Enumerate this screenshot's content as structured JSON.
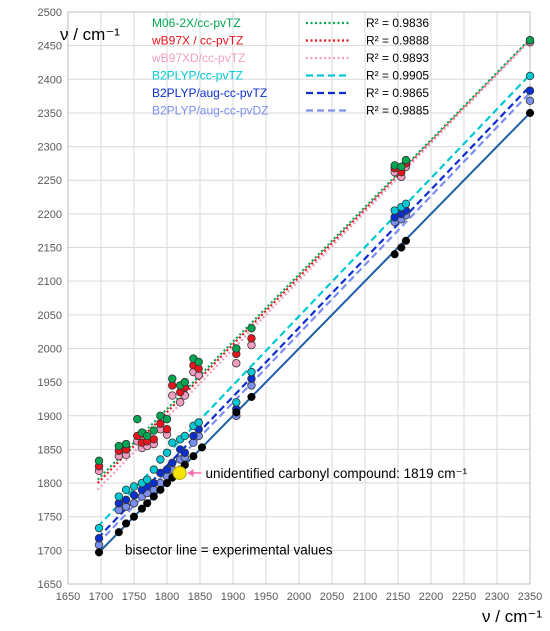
{
  "chart_data": {
    "type": "scatter",
    "xlabel": "ν / cm⁻¹",
    "ylabel": "ν / cm⁻¹",
    "xlim": [
      1650,
      2350
    ],
    "ylim": [
      1650,
      2500
    ],
    "x_ticks": [
      "1650",
      "1700",
      "1750",
      "1800",
      "1850",
      "1900",
      "1950",
      "2000",
      "2050",
      "2100",
      "2150",
      "2200",
      "2250",
      "2300",
      "2350"
    ],
    "y_ticks": [
      "1650",
      "1700",
      "1750",
      "1800",
      "1850",
      "1900",
      "1950",
      "2000",
      "2050",
      "2100",
      "2150",
      "2200",
      "2250",
      "2300",
      "2350",
      "2400",
      "2450",
      "2500"
    ],
    "grid": true,
    "legend_position": "top-left",
    "series": [
      {
        "name": "M06-2X/cc-pvTZ",
        "r2": "R² = 0.9836",
        "color": "#00a651",
        "line_style": "dotted",
        "fit": [
          [
            1695,
            1805
          ],
          [
            2350,
            2460
          ]
        ],
        "points": [
          [
            1697,
            1833
          ],
          [
            1727,
            1855
          ],
          [
            1738,
            1858
          ],
          [
            1755,
            1895
          ],
          [
            1762,
            1875
          ],
          [
            1770,
            1870
          ],
          [
            1780,
            1878
          ],
          [
            1790,
            1900
          ],
          [
            1800,
            1895
          ],
          [
            1808,
            1955
          ],
          [
            1820,
            1945
          ],
          [
            1827,
            1950
          ],
          [
            1840,
            1985
          ],
          [
            1848,
            1980
          ],
          [
            1905,
            2000
          ],
          [
            1928,
            2030
          ],
          [
            2145,
            2272
          ],
          [
            2155,
            2270
          ],
          [
            2162,
            2280
          ],
          [
            2350,
            2458
          ]
        ]
      },
      {
        "name": "wB97X / cc-pvTZ",
        "r2": "R² = 0.9888",
        "color": "#e8141c",
        "line_style": "dotted",
        "fit": [
          [
            1695,
            1800
          ],
          [
            2350,
            2458
          ]
        ],
        "points": [
          [
            1697,
            1825
          ],
          [
            1727,
            1848
          ],
          [
            1738,
            1850
          ],
          [
            1755,
            1870
          ],
          [
            1762,
            1860
          ],
          [
            1770,
            1862
          ],
          [
            1780,
            1865
          ],
          [
            1790,
            1888
          ],
          [
            1800,
            1880
          ],
          [
            1808,
            1945
          ],
          [
            1820,
            1935
          ],
          [
            1827,
            1942
          ],
          [
            1840,
            1975
          ],
          [
            1848,
            1970
          ],
          [
            1905,
            1992
          ],
          [
            1928,
            2015
          ],
          [
            2145,
            2268
          ],
          [
            2155,
            2262
          ],
          [
            2162,
            2275
          ],
          [
            2350,
            2458
          ]
        ]
      },
      {
        "name": "wB97XD/cc-pvTZ",
        "r2": "R² = 0.9893",
        "color": "#f19ec2",
        "line_style": "dotted",
        "fit": [
          [
            1695,
            1790
          ],
          [
            2350,
            2458
          ]
        ],
        "points": [
          [
            1697,
            1818
          ],
          [
            1727,
            1840
          ],
          [
            1738,
            1842
          ],
          [
            1755,
            1862
          ],
          [
            1762,
            1852
          ],
          [
            1770,
            1855
          ],
          [
            1780,
            1858
          ],
          [
            1790,
            1880
          ],
          [
            1800,
            1872
          ],
          [
            1808,
            1930
          ],
          [
            1820,
            1920
          ],
          [
            1827,
            1930
          ],
          [
            1840,
            1965
          ],
          [
            1848,
            1960
          ],
          [
            1905,
            1978
          ],
          [
            1928,
            2005
          ],
          [
            2145,
            2262
          ],
          [
            2155,
            2255
          ],
          [
            2162,
            2270
          ],
          [
            2350,
            2455
          ]
        ]
      },
      {
        "name": "B2PLYP/cc-pvTZ",
        "r2": "R² = 0.9905",
        "color": "#00c8d4",
        "line_style": "dashed",
        "fit": [
          [
            1695,
            1735
          ],
          [
            2350,
            2407
          ]
        ],
        "points": [
          [
            1697,
            1733
          ],
          [
            1727,
            1780
          ],
          [
            1738,
            1790
          ],
          [
            1750,
            1795
          ],
          [
            1762,
            1800
          ],
          [
            1770,
            1805
          ],
          [
            1780,
            1820
          ],
          [
            1790,
            1835
          ],
          [
            1800,
            1845
          ],
          [
            1808,
            1860
          ],
          [
            1820,
            1865
          ],
          [
            1827,
            1870
          ],
          [
            1840,
            1885
          ],
          [
            1848,
            1890
          ],
          [
            1905,
            1920
          ],
          [
            1928,
            1965
          ],
          [
            2145,
            2205
          ],
          [
            2155,
            2210
          ],
          [
            2162,
            2215
          ],
          [
            2350,
            2405
          ]
        ]
      },
      {
        "name": "B2PLYP/aug-cc-pvTZ",
        "r2": "R² = 0.9865",
        "color": "#0b2fcf",
        "line_style": "dashed",
        "fit": [
          [
            1695,
            1718
          ],
          [
            2350,
            2390
          ]
        ],
        "points": [
          [
            1697,
            1718
          ],
          [
            1727,
            1770
          ],
          [
            1738,
            1775
          ],
          [
            1750,
            1782
          ],
          [
            1762,
            1790
          ],
          [
            1770,
            1795
          ],
          [
            1780,
            1800
          ],
          [
            1790,
            1815
          ],
          [
            1800,
            1820
          ],
          [
            1808,
            1830
          ],
          [
            1820,
            1850
          ],
          [
            1827,
            1845
          ],
          [
            1840,
            1870
          ],
          [
            1848,
            1880
          ],
          [
            1905,
            1910
          ],
          [
            1928,
            1955
          ],
          [
            2145,
            2195
          ],
          [
            2155,
            2200
          ],
          [
            2162,
            2205
          ],
          [
            2350,
            2383
          ]
        ]
      },
      {
        "name": "B2PLYP/aug-cc-pvDZ",
        "r2": "R² = 0.9885",
        "color": "#7a8ff0",
        "line_style": "dashed",
        "fit": [
          [
            1695,
            1710
          ],
          [
            2350,
            2380
          ]
        ],
        "points": [
          [
            1697,
            1708
          ],
          [
            1727,
            1760
          ],
          [
            1738,
            1765
          ],
          [
            1750,
            1770
          ],
          [
            1762,
            1780
          ],
          [
            1770,
            1785
          ],
          [
            1780,
            1790
          ],
          [
            1790,
            1800
          ],
          [
            1800,
            1810
          ],
          [
            1808,
            1820
          ],
          [
            1820,
            1835
          ],
          [
            1827,
            1838
          ],
          [
            1840,
            1860
          ],
          [
            1848,
            1870
          ],
          [
            1905,
            1900
          ],
          [
            1928,
            1945
          ],
          [
            2145,
            2188
          ],
          [
            2155,
            2192
          ],
          [
            2162,
            2198
          ],
          [
            2350,
            2368
          ]
        ]
      }
    ],
    "bisector": {
      "label": "bisector line = experimental values",
      "color": "#1f5fa8",
      "points": [
        [
          1697,
          1697
        ],
        [
          1727,
          1727
        ],
        [
          1738,
          1740
        ],
        [
          1750,
          1750
        ],
        [
          1762,
          1762
        ],
        [
          1770,
          1770
        ],
        [
          1780,
          1780
        ],
        [
          1790,
          1790
        ],
        [
          1800,
          1800
        ],
        [
          1808,
          1808
        ],
        [
          1820,
          1820
        ],
        [
          1827,
          1827
        ],
        [
          1840,
          1840
        ],
        [
          1853,
          1853
        ],
        [
          1905,
          1905
        ],
        [
          1928,
          1928
        ],
        [
          2145,
          2140
        ],
        [
          2155,
          2150
        ],
        [
          2162,
          2160
        ],
        [
          2350,
          2350
        ]
      ]
    },
    "annotation": {
      "text": "unidentified carbonyl compound: 1819 cm⁻¹",
      "point": [
        1819,
        1815
      ],
      "color": "#f5e400",
      "arrow_color": "#ff6fae"
    }
  }
}
